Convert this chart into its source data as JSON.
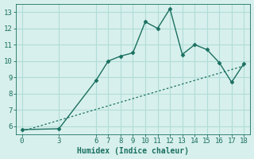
{
  "line1_x": [
    0,
    3,
    6,
    7,
    8,
    9,
    10,
    11,
    12,
    13,
    14,
    15,
    16,
    17,
    18
  ],
  "line1_y": [
    5.8,
    5.85,
    8.8,
    10.0,
    10.3,
    10.5,
    12.4,
    12.0,
    13.2,
    10.4,
    11.0,
    10.7,
    9.9,
    8.7,
    9.85
  ],
  "line2_x": [
    0,
    18
  ],
  "line2_y": [
    5.7,
    9.7
  ],
  "line_color": "#1a7060",
  "bg_color": "#d8f0ed",
  "grid_color": "#b0ddd8",
  "xlabel": "Humidex (Indice chaleur)",
  "xlim": [
    -0.5,
    18.5
  ],
  "ylim": [
    5.5,
    13.5
  ],
  "xticks": [
    0,
    3,
    6,
    7,
    8,
    9,
    10,
    11,
    12,
    13,
    14,
    15,
    16,
    17,
    18
  ],
  "yticks": [
    6,
    7,
    8,
    9,
    10,
    11,
    12,
    13
  ],
  "marker": "D",
  "markersize": 2.5,
  "tick_fontsize": 6.5,
  "xlabel_fontsize": 7
}
